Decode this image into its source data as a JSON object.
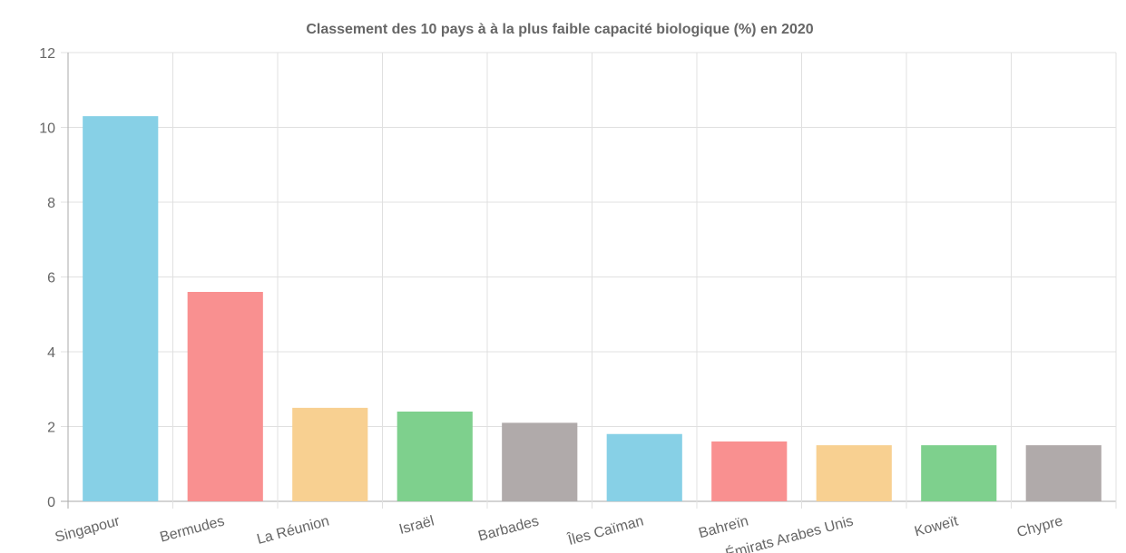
{
  "chart_data": {
    "type": "bar",
    "title": "Classement des 10 pays à à la plus faible capacité biologique (%) en 2020",
    "categories": [
      "Singapour",
      "Bermudes",
      "La Réunion",
      "Israël",
      "Barbades",
      "Îles Caïman",
      "Bahreïn",
      "Émirats Arabes Unis",
      "Koweït",
      "Chypre"
    ],
    "values": [
      10.3,
      5.6,
      2.5,
      2.4,
      2.1,
      1.8,
      1.6,
      1.5,
      1.5,
      1.5
    ],
    "colors": [
      "#87d0e6",
      "#f99090",
      "#f8d091",
      "#7ed08d",
      "#b0aaaa",
      "#87d0e6",
      "#f99090",
      "#f8d091",
      "#7ed08d",
      "#b0aaaa"
    ],
    "ylim": [
      0,
      12
    ],
    "yticks": [
      "0",
      "2",
      "4",
      "6",
      "8",
      "10",
      "12"
    ],
    "xlabel": "",
    "ylabel": "",
    "grid": true,
    "legend": "none"
  }
}
